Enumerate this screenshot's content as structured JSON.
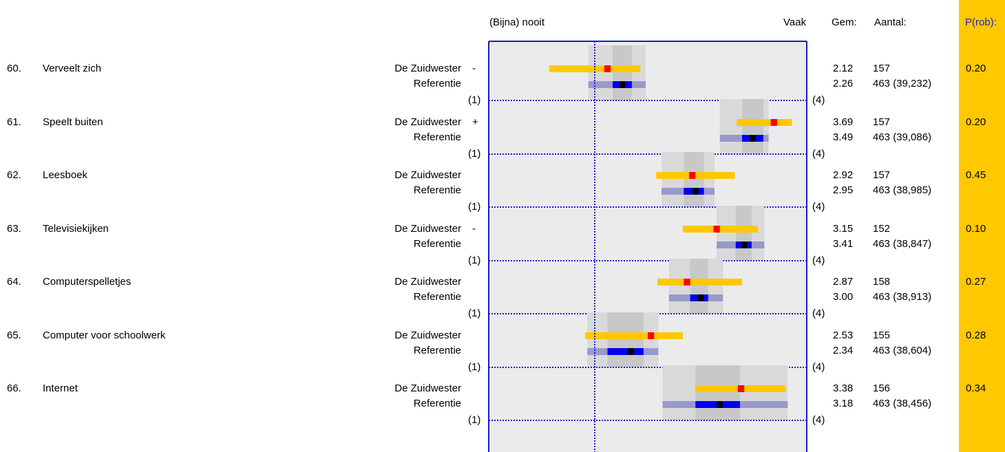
{
  "header": {
    "left_label": "(Bijna) nooit",
    "right_label": "Vaak",
    "gem_label": "Gem:",
    "aantal_label": "Aantal:",
    "prob_label": "P(rob):"
  },
  "scale": {
    "min_label": "(1)",
    "max_label": "(4)",
    "min": 1,
    "max": 4
  },
  "colors": {
    "frame": "#1a1acc",
    "school_bar": "#FFC800",
    "school_mean": "#FF0000",
    "ref_bar_outer": "#9999CC",
    "ref_bar_inner": "#0000EE",
    "ref_mean": "#000000",
    "band_outer": "#D9D9D9",
    "band_inner": "#C8C8C8",
    "plot_bg": "#EBEBEB",
    "prob_column": "#FFC800"
  },
  "rows": [
    {
      "num": "60.",
      "label": "Verveelt zich",
      "school": "De Zuidwester",
      "ref": "Referentie",
      "sign": "-",
      "school_mean_text": "2.12",
      "school_n": "157",
      "ref_mean_text": "2.26",
      "ref_n": "463 (39,232)",
      "prob": "0.20"
    },
    {
      "num": "61.",
      "label": "Speelt buiten",
      "school": "De Zuidwester",
      "ref": "Referentie",
      "sign": "+",
      "school_mean_text": "3.69",
      "school_n": "157",
      "ref_mean_text": "3.49",
      "ref_n": "463 (39,086)",
      "prob": "0.20"
    },
    {
      "num": "62.",
      "label": "Leesboek",
      "school": "De Zuidwester",
      "ref": "Referentie",
      "sign": "",
      "school_mean_text": "2.92",
      "school_n": "157",
      "ref_mean_text": "2.95",
      "ref_n": "463 (38,985)",
      "prob": "0.45"
    },
    {
      "num": "63.",
      "label": "Televisiekijken",
      "school": "De Zuidwester",
      "ref": "Referentie",
      "sign": "-",
      "school_mean_text": "3.15",
      "school_n": "152",
      "ref_mean_text": "3.41",
      "ref_n": "463 (38,847)",
      "prob": "0.10"
    },
    {
      "num": "64.",
      "label": "Computerspelletjes",
      "school": "De Zuidwester",
      "ref": "Referentie",
      "sign": "",
      "school_mean_text": "2.87",
      "school_n": "158",
      "ref_mean_text": "3.00",
      "ref_n": "463 (38,913)",
      "prob": "0.27"
    },
    {
      "num": "65.",
      "label": "Computer voor schoolwerk",
      "school": "De Zuidwester",
      "ref": "Referentie",
      "sign": "",
      "school_mean_text": "2.53",
      "school_n": "155",
      "ref_mean_text": "2.34",
      "ref_n": "463 (38,604)",
      "prob": "0.28"
    },
    {
      "num": "66.",
      "label": "Internet",
      "school": "De Zuidwester",
      "ref": "Referentie",
      "sign": "",
      "school_mean_text": "3.38",
      "school_n": "156",
      "ref_mean_text": "3.18",
      "ref_n": "463 (38,456)",
      "prob": "0.34"
    }
  ],
  "chart_data": {
    "type": "bar",
    "x_range": [
      1,
      4
    ],
    "reference_line": 2,
    "items": [
      {
        "id": "60",
        "school": {
          "mean": 2.12,
          "low": 1.57,
          "high": 2.43
        },
        "ref": {
          "mean": 2.26,
          "outer": [
            1.94,
            2.48
          ],
          "inner": [
            2.17,
            2.35
          ]
        },
        "bands": {
          "outer": [
            1.94,
            2.48
          ],
          "inner": [
            2.17,
            2.35
          ]
        }
      },
      {
        "id": "61",
        "school": {
          "mean": 3.69,
          "low": 3.34,
          "high": 3.86
        },
        "ref": {
          "mean": 3.49,
          "outer": [
            3.18,
            3.64
          ],
          "inner": [
            3.39,
            3.59
          ]
        },
        "bands": {
          "outer": [
            3.18,
            3.64
          ],
          "inner": [
            3.39,
            3.59
          ]
        }
      },
      {
        "id": "62",
        "school": {
          "mean": 2.92,
          "low": 2.58,
          "high": 3.32
        },
        "ref": {
          "mean": 2.95,
          "outer": [
            2.63,
            3.13
          ],
          "inner": [
            2.84,
            3.03
          ]
        },
        "bands": {
          "outer": [
            2.63,
            3.13
          ],
          "inner": [
            2.84,
            3.03
          ]
        }
      },
      {
        "id": "63",
        "school": {
          "mean": 3.15,
          "low": 2.83,
          "high": 3.54
        },
        "ref": {
          "mean": 3.41,
          "outer": [
            3.15,
            3.6
          ],
          "inner": [
            3.33,
            3.48
          ]
        },
        "bands": {
          "outer": [
            3.15,
            3.6
          ],
          "inner": [
            3.33,
            3.48
          ]
        }
      },
      {
        "id": "64",
        "school": {
          "mean": 2.87,
          "low": 2.59,
          "high": 3.39
        },
        "ref": {
          "mean": 3.0,
          "outer": [
            2.7,
            3.21
          ],
          "inner": [
            2.9,
            3.07
          ]
        },
        "bands": {
          "outer": [
            2.7,
            3.21
          ],
          "inner": [
            2.9,
            3.07
          ]
        }
      },
      {
        "id": "65",
        "school": {
          "mean": 2.53,
          "low": 1.91,
          "high": 2.83
        },
        "ref": {
          "mean": 2.34,
          "outer": [
            1.93,
            2.6
          ],
          "inner": [
            2.12,
            2.46
          ]
        },
        "bands": {
          "outer": [
            1.93,
            2.6
          ],
          "inner": [
            2.12,
            2.46
          ]
        }
      },
      {
        "id": "66",
        "school": {
          "mean": 3.38,
          "low": 2.95,
          "high": 3.8
        },
        "ref": {
          "mean": 3.18,
          "outer": [
            2.64,
            3.82
          ],
          "inner": [
            2.95,
            3.37
          ]
        },
        "bands": {
          "outer": [
            2.64,
            3.82
          ],
          "inner": [
            2.95,
            3.37
          ]
        }
      }
    ]
  }
}
